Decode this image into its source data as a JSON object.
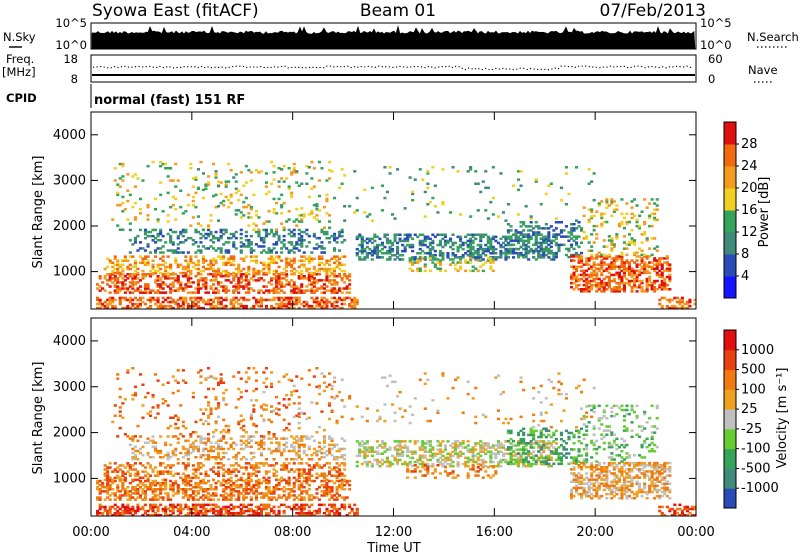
{
  "header": {
    "station": "Syowa East (fitACF)",
    "beam": "Beam 01",
    "date": "07/Feb/2013"
  },
  "strips": {
    "nsky_label": "N.Sky",
    "nsky_ticks": [
      "10^5",
      "10^0"
    ],
    "nsearch_label": "N.Search",
    "nsearch_ticks": [
      "10^5",
      "10^0"
    ],
    "freq_label": "Freq.",
    "freq_unit": "[MHz]",
    "freq_ticks": [
      "18",
      "8"
    ],
    "nave_label": "Nave",
    "nave_ticks": [
      "60",
      "0"
    ],
    "cpid_label": "CPID",
    "cpid_text": "normal (fast) 151 RF"
  },
  "chart_data": [
    {
      "type": "heatmap",
      "name": "power",
      "ylabel": "Slant Range [km]",
      "yticks": [
        "1000",
        "2000",
        "3000",
        "4000"
      ],
      "ylim": [
        180,
        4500
      ],
      "xlim_hours": [
        0,
        24
      ],
      "colorbar": {
        "label": "Power [dB]",
        "ticks": [
          "4",
          "8",
          "12",
          "16",
          "20",
          "24",
          "28"
        ],
        "range": [
          0,
          32
        ],
        "colors": [
          "#1414ff",
          "#2a4bb8",
          "#3f8a7a",
          "#35a35a",
          "#f0d020",
          "#f39a1f",
          "#f26a10",
          "#e01010"
        ]
      }
    },
    {
      "type": "heatmap",
      "name": "velocity",
      "ylabel": "Slant Range [km]",
      "yticks": [
        "1000",
        "2000",
        "3000",
        "4000"
      ],
      "ylim": [
        180,
        4500
      ],
      "xlim_hours": [
        0,
        24
      ],
      "xticks": [
        "00:00",
        "04:00",
        "08:00",
        "12:00",
        "16:00",
        "20:00",
        "00:00"
      ],
      "xlabel": "Time UT",
      "colorbar": {
        "label": "Velocity [m s⁻¹]",
        "ticks": [
          "1000",
          "500",
          "100",
          "25",
          "-25",
          "-100",
          "-500",
          "-1000"
        ],
        "colors": [
          "#2a4bb8",
          "#3f8a7a",
          "#35a35a",
          "#66cc33",
          "#c0c0c0",
          "#f0a020",
          "#f07a10",
          "#e84010",
          "#e01010"
        ]
      }
    }
  ]
}
